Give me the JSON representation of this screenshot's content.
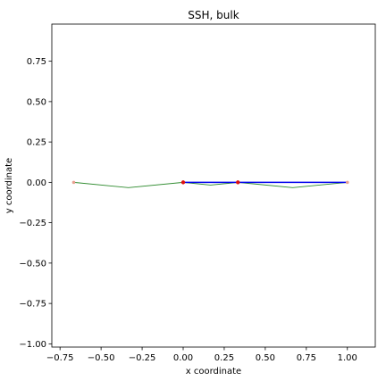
{
  "chart_data": {
    "type": "line",
    "title": "SSH, bulk",
    "xlabel": "x coordinate",
    "ylabel": "y coordinate",
    "xlim": [
      -0.8,
      1.17
    ],
    "ylim": [
      -1.02,
      0.98
    ],
    "xticks": [
      -0.75,
      -0.5,
      -0.25,
      0.0,
      0.25,
      0.5,
      0.75,
      1.0
    ],
    "xtick_labels": [
      "−0.75",
      "−0.50",
      "−0.25",
      "0.00",
      "0.25",
      "0.50",
      "0.75",
      "1.00"
    ],
    "yticks": [
      -1.0,
      -0.75,
      -0.5,
      -0.25,
      0.0,
      0.25,
      0.5,
      0.75
    ],
    "ytick_labels": [
      "−1.00",
      "−0.75",
      "−0.50",
      "−0.25",
      "0.00",
      "0.25",
      "0.50",
      "0.75"
    ],
    "grid": false,
    "series": [
      {
        "kind": "line",
        "color": "#2e8b2e",
        "x": [
          -0.6667,
          -0.3333,
          0.0,
          0.1667,
          0.3333,
          0.6667,
          1.0
        ],
        "y": [
          0.0,
          -0.033,
          0.0,
          -0.017,
          0.0,
          -0.033,
          0.0
        ]
      },
      {
        "kind": "line",
        "color": "#0000ee",
        "x": [
          0.0,
          1.0
        ],
        "y": [
          0.0,
          0.0
        ]
      },
      {
        "kind": "scatter",
        "color": "#e8a090",
        "x": [
          -0.6667,
          1.0
        ],
        "y": [
          0.0,
          0.0
        ]
      },
      {
        "kind": "scatter",
        "color": "#dd1111",
        "x": [
          0.0,
          0.3333
        ],
        "y": [
          0.0,
          0.0
        ]
      }
    ]
  }
}
